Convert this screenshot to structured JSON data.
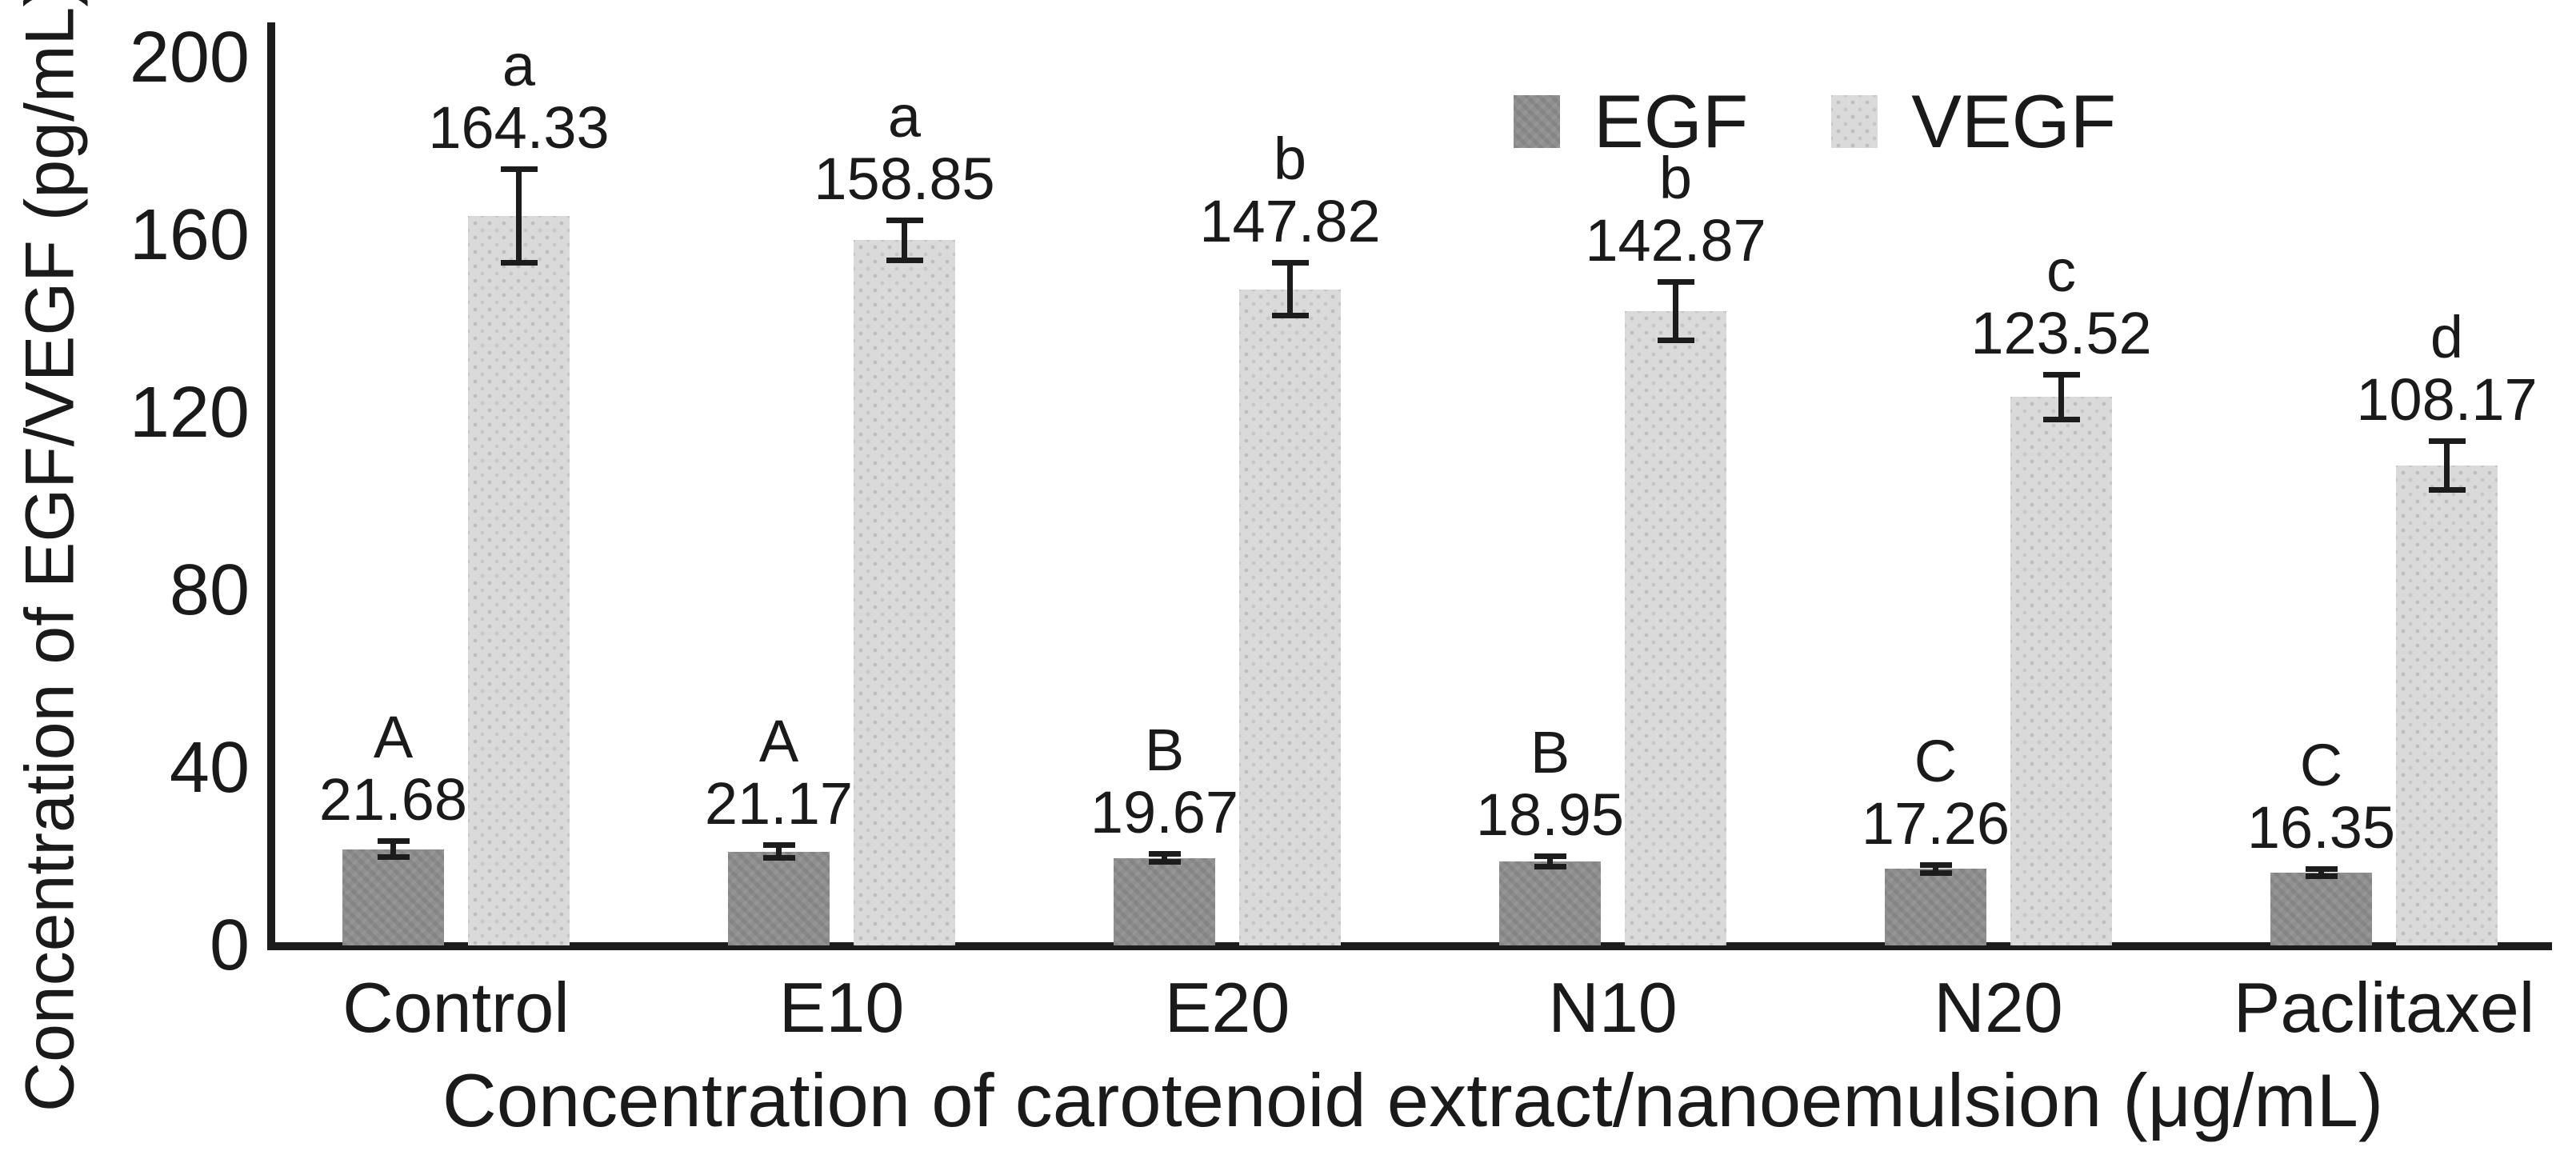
{
  "chart_data": {
    "type": "bar",
    "title": "",
    "xlabel": "Concentration of carotenoid extract/nanoemulsion (μg/mL)",
    "ylabel": "Concentration of EGF/VEGF (pg/mL)",
    "categories": [
      "Control",
      "E10",
      "E20",
      "N10",
      "N20",
      "Paclitaxel"
    ],
    "series": [
      {
        "name": "EGF",
        "color": "#8f8f8f",
        "pattern": "hatch",
        "values": [
          21.68,
          21.17,
          19.67,
          18.95,
          17.26,
          16.35
        ],
        "errors": [
          1.8,
          1.5,
          0.9,
          1.2,
          0.9,
          0.8
        ],
        "letters": [
          "A",
          "A",
          "B",
          "B",
          "C",
          "C"
        ]
      },
      {
        "name": "VEGF",
        "color": "#dadada",
        "pattern": "dots",
        "values": [
          164.33,
          158.85,
          147.82,
          142.87,
          123.52,
          108.17
        ],
        "errors": [
          10.5,
          4.5,
          6.0,
          6.5,
          5.0,
          5.5
        ],
        "letters": [
          "a",
          "a",
          "b",
          "b",
          "c",
          "d"
        ]
      }
    ],
    "ylim": [
      0,
      200
    ],
    "yticks": [
      0,
      40,
      80,
      120,
      160,
      200
    ],
    "legend_position": "top-right",
    "grid": false,
    "error_bars": true,
    "ink_color": "#1c1c1c"
  }
}
